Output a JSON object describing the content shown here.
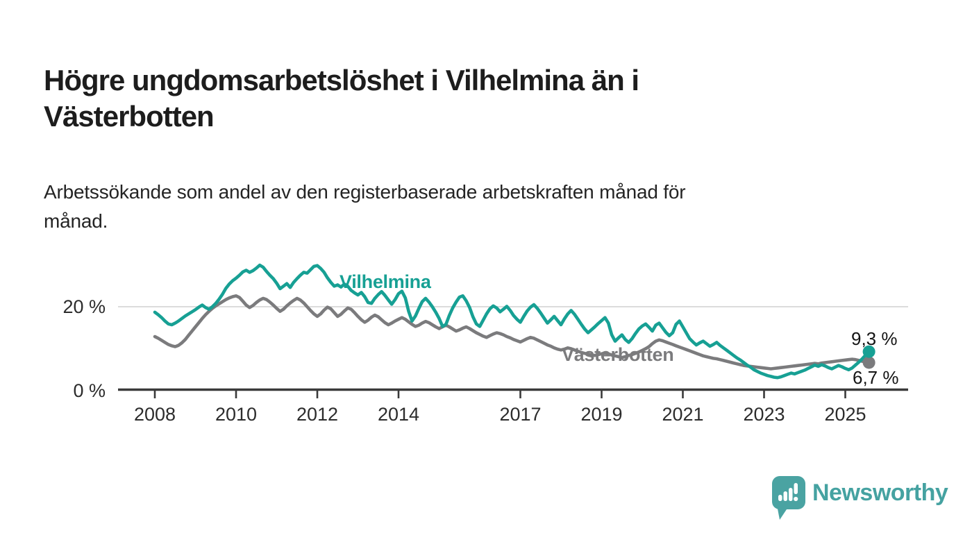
{
  "header": {
    "title_line1": "Högre ungdomsarbetslöshet i Vilhelmina än i",
    "title_line2": "Västerbotten",
    "subtitle_line1": "Arbetssökande som andel av den registerbaserade arbetskraften månad för",
    "subtitle_line2": "månad."
  },
  "chart_data": {
    "type": "line",
    "title": "Högre ungdomsarbetslöshet i Vilhelmina än i Västerbotten",
    "subtitle": "Arbetssökande som andel av den registerbaserade arbetskraften månad för månad.",
    "unit": "%",
    "x_start_year": 2008,
    "x_step_months": 1,
    "x_end": "2025-08",
    "xlim": [
      2007.1,
      2026.5
    ],
    "ylim": [
      0,
      33
    ],
    "grid": "single horizontal gridline at 20 %",
    "legend_position": "inline-labels-on-lines",
    "x_ticks": [
      2008,
      2010,
      2012,
      2014,
      2017,
      2019,
      2021,
      2023,
      2025
    ],
    "y_ticks": [
      {
        "value": 0,
        "label": "0 %"
      },
      {
        "value": 20,
        "label": "20 %"
      }
    ],
    "y_gridlines": [
      20
    ],
    "series": [
      {
        "key": "vilhelmina",
        "name": "Vilhelmina",
        "color": "#17a094",
        "end_label": "9,3 %",
        "end_value": 9.3,
        "values": [
          18.7,
          18.1,
          17.4,
          16.6,
          15.9,
          15.7,
          16.1,
          16.6,
          17.2,
          17.8,
          18.3,
          18.8,
          19.3,
          19.9,
          20.4,
          19.8,
          19.4,
          20.0,
          20.8,
          21.8,
          23.0,
          24.4,
          25.4,
          26.2,
          26.8,
          27.5,
          28.3,
          28.7,
          28.2,
          28.6,
          29.2,
          29.9,
          29.4,
          28.4,
          27.5,
          26.7,
          25.6,
          24.3,
          24.9,
          25.5,
          24.6,
          25.8,
          26.7,
          27.5,
          28.2,
          28.0,
          28.8,
          29.6,
          29.8,
          29.1,
          28.2,
          26.9,
          25.8,
          24.9,
          25.2,
          24.7,
          25.4,
          24.9,
          23.9,
          23.3,
          22.8,
          23.4,
          22.4,
          21.0,
          20.8,
          22.0,
          22.9,
          23.6,
          22.7,
          21.6,
          20.6,
          21.7,
          23.1,
          23.7,
          22.1,
          18.9,
          16.6,
          17.8,
          19.6,
          21.2,
          22.0,
          21.1,
          20.0,
          18.7,
          17.2,
          15.3,
          15.8,
          17.9,
          19.7,
          21.1,
          22.3,
          22.6,
          21.4,
          19.8,
          17.6,
          15.9,
          15.3,
          16.8,
          18.3,
          19.5,
          20.2,
          19.7,
          18.8,
          19.4,
          20.1,
          19.1,
          17.9,
          17.0,
          16.3,
          17.7,
          19.0,
          19.9,
          20.5,
          19.6,
          18.5,
          17.3,
          16.1,
          16.9,
          17.7,
          16.7,
          15.7,
          17.1,
          18.3,
          19.1,
          18.2,
          17.0,
          15.8,
          14.7,
          13.8,
          14.5,
          15.2,
          16.0,
          16.7,
          17.4,
          16.1,
          13.3,
          11.8,
          12.6,
          13.3,
          12.2,
          11.5,
          12.4,
          13.6,
          14.7,
          15.4,
          15.9,
          15.1,
          14.2,
          15.6,
          16.1,
          15.0,
          13.9,
          13.1,
          13.8,
          15.8,
          16.6,
          15.2,
          13.8,
          12.4,
          11.6,
          10.9,
          11.4,
          11.8,
          11.2,
          10.6,
          11.0,
          11.5,
          10.8,
          10.2,
          9.6,
          9.0,
          8.4,
          7.8,
          7.3,
          6.7,
          6.1,
          5.6,
          5.0,
          4.6,
          4.2,
          3.9,
          3.6,
          3.4,
          3.2,
          3.1,
          3.3,
          3.6,
          3.9,
          4.2,
          4.0,
          4.3,
          4.6,
          4.9,
          5.3,
          5.7,
          6.1,
          5.8,
          6.2,
          5.9,
          5.5,
          5.2,
          5.6,
          6.0,
          5.7,
          5.3,
          5.0,
          5.4,
          6.1,
          6.8,
          7.6,
          8.5,
          9.3
        ]
      },
      {
        "key": "vasterbotten",
        "name": "Västerbotten",
        "color": "#7b7b7d",
        "end_label": "6,7 %",
        "end_value": 6.7,
        "values": [
          12.9,
          12.5,
          12.0,
          11.5,
          11.0,
          10.7,
          10.5,
          10.8,
          11.4,
          12.2,
          13.2,
          14.2,
          15.2,
          16.2,
          17.2,
          18.1,
          18.9,
          19.6,
          20.2,
          20.7,
          21.2,
          21.7,
          22.1,
          22.4,
          22.6,
          22.2,
          21.3,
          20.4,
          19.8,
          20.3,
          21.0,
          21.6,
          22.0,
          21.7,
          21.1,
          20.4,
          19.6,
          18.9,
          19.4,
          20.2,
          20.9,
          21.5,
          22.0,
          21.6,
          20.9,
          20.0,
          19.1,
          18.3,
          17.7,
          18.3,
          19.2,
          19.9,
          19.5,
          18.6,
          17.7,
          18.2,
          19.0,
          19.7,
          19.4,
          18.6,
          17.7,
          16.9,
          16.3,
          16.8,
          17.5,
          18.0,
          17.6,
          16.9,
          16.2,
          15.7,
          16.1,
          16.6,
          17.0,
          17.4,
          17.0,
          16.4,
          15.8,
          15.3,
          15.6,
          16.1,
          16.5,
          16.2,
          15.7,
          15.2,
          14.8,
          15.2,
          15.6,
          15.2,
          14.7,
          14.2,
          14.5,
          14.9,
          15.2,
          14.8,
          14.3,
          13.8,
          13.4,
          13.0,
          12.7,
          13.1,
          13.5,
          13.8,
          13.6,
          13.3,
          12.9,
          12.6,
          12.2,
          11.9,
          11.6,
          12.0,
          12.4,
          12.7,
          12.5,
          12.1,
          11.7,
          11.3,
          10.9,
          10.6,
          10.2,
          9.9,
          9.7,
          9.9,
          10.2,
          10.0,
          9.7,
          9.4,
          9.1,
          8.9,
          8.7,
          8.5,
          8.4,
          8.6,
          8.8,
          9.0,
          8.8,
          8.5,
          8.3,
          8.1,
          7.9,
          8.1,
          8.4,
          8.6,
          8.9,
          9.2,
          9.6,
          10.0,
          10.5,
          11.2,
          11.8,
          12.1,
          11.9,
          11.6,
          11.3,
          11.0,
          10.7,
          10.4,
          10.1,
          9.8,
          9.5,
          9.2,
          8.9,
          8.6,
          8.3,
          8.1,
          7.9,
          7.7,
          7.6,
          7.4,
          7.2,
          7.0,
          6.8,
          6.6,
          6.4,
          6.2,
          6.0,
          5.9,
          5.8,
          5.7,
          5.6,
          5.5,
          5.4,
          5.3,
          5.2,
          5.3,
          5.4,
          5.5,
          5.6,
          5.7,
          5.8,
          5.9,
          6.0,
          6.1,
          6.2,
          6.3,
          6.4,
          6.5,
          6.4,
          6.6,
          6.7,
          6.8,
          6.9,
          7.0,
          7.1,
          7.2,
          7.3,
          7.4,
          7.5,
          7.4,
          7.2,
          7.0,
          6.9,
          6.7
        ]
      }
    ]
  },
  "branding": {
    "logo_text": "Newsworthy",
    "logo_color": "#45a2a1",
    "logo_icon": "bar-chart-speech-bubble-icon"
  },
  "style_colors": {
    "axis": "#3a3a3a",
    "gridline": "#dcdcdc",
    "tick_label": "#2c2c2c",
    "title_ink": "#1d1d1d"
  }
}
